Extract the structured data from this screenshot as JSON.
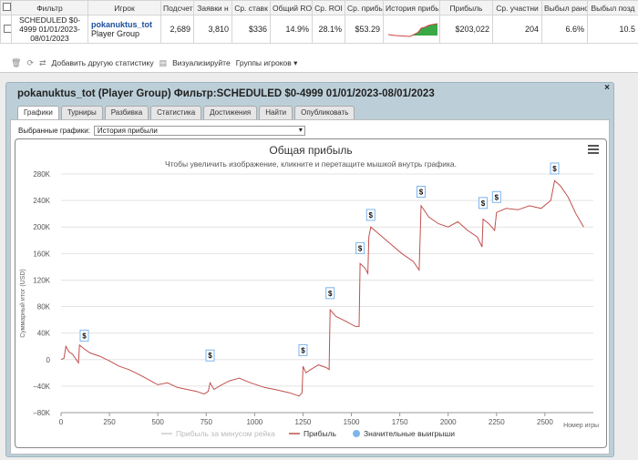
{
  "table": {
    "headers": [
      "Фильтр",
      "Игрок",
      "Подсчет",
      "Заявки н",
      "Ср. ставк",
      "Общий ROI",
      "Ср. ROI",
      "Ср. прибы",
      "История прибы",
      "Прибыль",
      "Ср. участни",
      "Выбыл рано",
      "Выбыл позд"
    ],
    "row": {
      "filter": "SCHEDULED $0-4999 01/01/2023-08/01/2023",
      "player_name": "pokanuktus_tot",
      "player_group": "Player Group",
      "count": "2,689",
      "entries": "3,810",
      "avg_stake": "$336",
      "total_roi": "14.9%",
      "avg_roi": "28.1%",
      "avg_profit": "$53.29",
      "profit": "$203,022",
      "avg_field": "204",
      "early_bust": "6.6%",
      "late_bust": "10.5"
    }
  },
  "toolbar": {
    "add_stats": "Добавить другую статистику",
    "visualize": "Визуализируйте",
    "player_groups": "Группы игроков ▾"
  },
  "panel": {
    "title": "pokanuktus_tot (Player Group) Фильтр:SCHEDULED $0-4999 01/01/2023-08/01/2023",
    "close": "×",
    "tabs": [
      "Графики",
      "Турниры",
      "Разбивка",
      "Статистика",
      "Достижения",
      "Найти",
      "Опубликовать"
    ],
    "active_tab": 0,
    "select_label": "Выбранные графики:",
    "select_value": "История прибыли"
  },
  "chart_data": {
    "type": "line",
    "title": "Общая прибыль",
    "subtitle": "Чтобы увеличить изображение, кликните и перетащите мышкой внутрь графика.",
    "xlabel": "Номер игры",
    "ylabel": "Суммарный итог (USD)",
    "xlim": [
      0,
      2750
    ],
    "ylim": [
      -80000,
      280000
    ],
    "x_ticks": [
      0,
      250,
      500,
      750,
      1000,
      1250,
      1500,
      1750,
      2000,
      2250,
      2500
    ],
    "y_ticks": [
      -80000,
      -40000,
      0,
      40000,
      80000,
      120000,
      160000,
      200000,
      240000,
      280000
    ],
    "x_tick_labels": [
      "0",
      "250",
      "500",
      "750",
      "1000",
      "1250",
      "1500",
      "1750",
      "2000",
      "2250",
      "2500"
    ],
    "y_tick_labels": [
      "−80K",
      "−40K",
      "0",
      "40K",
      "80K",
      "120K",
      "160K",
      "200K",
      "240K",
      "280K"
    ],
    "grid": "horizontal",
    "legend": [
      "Прибыль за минусом рейка",
      "Прибыль",
      "Значительные выигрыши"
    ],
    "legend_placement": "bottom",
    "series_color": "#c0504d",
    "big_win_color": "#7cb5ec",
    "big_win_label": "$",
    "series": [
      {
        "name": "Прибыль",
        "points": [
          [
            0,
            0
          ],
          [
            15,
            2000
          ],
          [
            25,
            20000
          ],
          [
            40,
            12000
          ],
          [
            60,
            8000
          ],
          [
            90,
            -5000
          ],
          [
            95,
            22000
          ],
          [
            120,
            16000
          ],
          [
            150,
            10000
          ],
          [
            200,
            5000
          ],
          [
            250,
            -2000
          ],
          [
            300,
            -10000
          ],
          [
            350,
            -15000
          ],
          [
            400,
            -22000
          ],
          [
            450,
            -30000
          ],
          [
            500,
            -38000
          ],
          [
            550,
            -35000
          ],
          [
            600,
            -42000
          ],
          [
            650,
            -45000
          ],
          [
            700,
            -48000
          ],
          [
            740,
            -52000
          ],
          [
            760,
            -48000
          ],
          [
            770,
            -35000
          ],
          [
            790,
            -45000
          ],
          [
            830,
            -38000
          ],
          [
            870,
            -32000
          ],
          [
            920,
            -28000
          ],
          [
            980,
            -35000
          ],
          [
            1050,
            -42000
          ],
          [
            1120,
            -46000
          ],
          [
            1180,
            -50000
          ],
          [
            1230,
            -55000
          ],
          [
            1245,
            -50000
          ],
          [
            1250,
            -10000
          ],
          [
            1265,
            -20000
          ],
          [
            1290,
            -15000
          ],
          [
            1330,
            -8000
          ],
          [
            1370,
            -12000
          ],
          [
            1385,
            -15000
          ],
          [
            1390,
            75000
          ],
          [
            1420,
            65000
          ],
          [
            1470,
            58000
          ],
          [
            1520,
            50000
          ],
          [
            1540,
            50000
          ],
          [
            1545,
            145000
          ],
          [
            1570,
            138000
          ],
          [
            1585,
            130000
          ],
          [
            1590,
            185000
          ],
          [
            1600,
            200000
          ],
          [
            1640,
            190000
          ],
          [
            1700,
            175000
          ],
          [
            1760,
            160000
          ],
          [
            1820,
            148000
          ],
          [
            1850,
            135000
          ],
          [
            1860,
            232000
          ],
          [
            1900,
            215000
          ],
          [
            1950,
            205000
          ],
          [
            2000,
            200000
          ],
          [
            2050,
            208000
          ],
          [
            2100,
            195000
          ],
          [
            2150,
            185000
          ],
          [
            2175,
            170000
          ],
          [
            2180,
            212000
          ],
          [
            2210,
            205000
          ],
          [
            2240,
            195000
          ],
          [
            2250,
            222000
          ],
          [
            2300,
            228000
          ],
          [
            2360,
            226000
          ],
          [
            2420,
            232000
          ],
          [
            2480,
            228000
          ],
          [
            2530,
            240000
          ],
          [
            2550,
            270000
          ],
          [
            2580,
            262000
          ],
          [
            2620,
            245000
          ],
          [
            2660,
            220000
          ],
          [
            2700,
            200000
          ]
        ]
      }
    ],
    "big_wins": [
      [
        120,
        28000
      ],
      [
        770,
        -2000
      ],
      [
        1250,
        6000
      ],
      [
        1390,
        92000
      ],
      [
        1545,
        160000
      ],
      [
        1600,
        210000
      ],
      [
        1860,
        245000
      ],
      [
        2180,
        228000
      ],
      [
        2250,
        237000
      ],
      [
        2550,
        280000
      ]
    ]
  }
}
